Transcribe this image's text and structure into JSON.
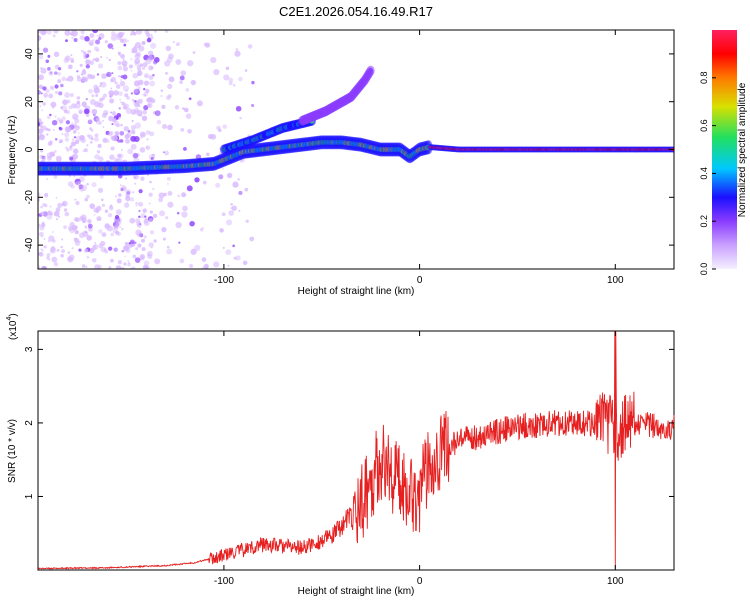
{
  "title": "C2E1.2026.054.16.49.R17",
  "colors": {
    "background": "#ffffff",
    "snr_line": "#e62020",
    "colormap": [
      "#f5f0ff",
      "#d8b8ff",
      "#8a3cff",
      "#1a10ff",
      "#00c8ff",
      "#20e060",
      "#d8e000",
      "#ff7a00",
      "#ff0000",
      "#ff2060"
    ]
  },
  "chart_data": [
    {
      "type": "heatmap",
      "name": "spectrogram",
      "xlabel": "Height of straight line (km)",
      "ylabel": "Frequency (Hz)",
      "xlim": [
        -195,
        130
      ],
      "ylim": [
        -50,
        50
      ],
      "xticks": [
        -100,
        0,
        100
      ],
      "yticks": [
        -40,
        -20,
        0,
        20,
        40
      ],
      "colorbar": {
        "label": "Normalized spectral amplitude",
        "range": [
          0,
          1
        ],
        "ticks": [
          "0.0",
          "0.2",
          "0.4",
          "0.6",
          "0.8"
        ]
      },
      "features": [
        {
          "name": "main-trace",
          "x": [
            -195,
            -150,
            -120,
            -105,
            -90,
            -70,
            -50,
            -40,
            -30,
            -20,
            -10,
            -5,
            0,
            5,
            20,
            60,
            100,
            130
          ],
          "y": [
            -8,
            -8,
            -7,
            -6,
            -1,
            1,
            3,
            3,
            2,
            0,
            0,
            -3,
            0,
            1,
            0,
            0,
            0,
            0
          ]
        },
        {
          "name": "upper-branch",
          "x": [
            -100,
            -85,
            -70,
            -60,
            -55
          ],
          "y": [
            0,
            4,
            9,
            11,
            12
          ]
        },
        {
          "name": "faint-branch",
          "x": [
            -60,
            -48,
            -35,
            -28,
            -25
          ],
          "y": [
            12,
            16,
            22,
            29,
            33
          ]
        }
      ]
    },
    {
      "type": "line",
      "name": "snr",
      "xlabel": "Height of straight line (km)",
      "ylabel": "SNR (10 * v/v)",
      "scale_label": "(x10^4)",
      "scale_base": "(x10",
      "scale_exp": "4",
      "xlim": [
        -195,
        130
      ],
      "ylim": [
        0,
        3.25
      ],
      "xticks": [
        -100,
        0,
        100
      ],
      "yticks": [
        1,
        2,
        3
      ],
      "x": [
        -195,
        -160,
        -130,
        -115,
        -100,
        -80,
        -60,
        -45,
        -30,
        -20,
        -10,
        0,
        5,
        10,
        20,
        35,
        50,
        70,
        90,
        100,
        110,
        120,
        130
      ],
      "y": [
        0.02,
        0.03,
        0.06,
        0.1,
        0.2,
        0.35,
        0.3,
        0.45,
        0.9,
        1.5,
        1.2,
        1.0,
        1.5,
        1.6,
        1.75,
        1.85,
        1.95,
        2.0,
        2.0,
        1.9,
        2.0,
        1.95,
        1.95
      ]
    }
  ]
}
